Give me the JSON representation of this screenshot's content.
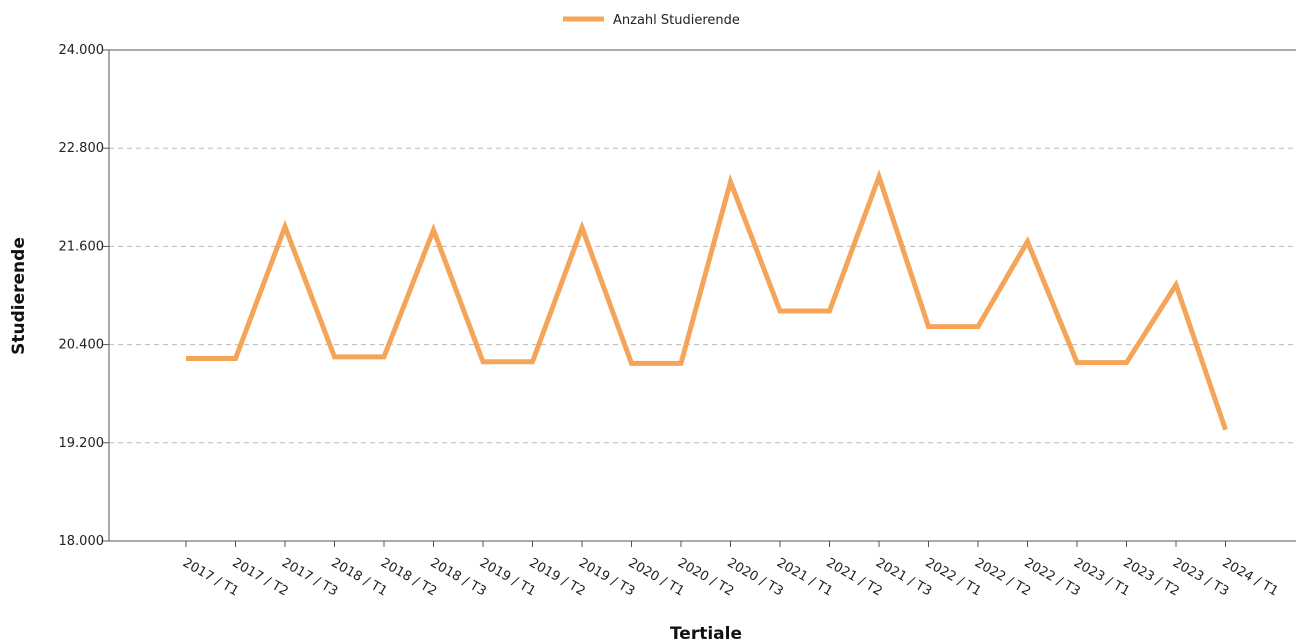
{
  "chart_data": {
    "type": "line",
    "title": "",
    "xlabel": "Tertiale",
    "ylabel": "Studierende",
    "categories": [
      "2017 / T1",
      "2017 / T2",
      "2017 / T3",
      "2018 / T1",
      "2018 / T2",
      "2018 / T3",
      "2019 / T1",
      "2019 / T2",
      "2019 / T3",
      "2020 / T1",
      "2020 / T2",
      "2020 / T3",
      "2021 / T1",
      "2021 / T2",
      "2021 / T3",
      "2022 / T1",
      "2022 / T2",
      "2022 / T3",
      "2023 / T1",
      "2023 / T2",
      "2023 / T3",
      "2024 / T1"
    ],
    "series": [
      {
        "name": "Anzahl Studierende",
        "color": "#f5a55a",
        "values": [
          20230,
          20230,
          21840,
          20250,
          20250,
          21800,
          20190,
          20190,
          21830,
          20170,
          20170,
          22390,
          20810,
          20810,
          22450,
          20620,
          20620,
          21660,
          20180,
          20180,
          21130,
          19360
        ]
      }
    ],
    "ylim": [
      18000,
      24000
    ],
    "yticks": [
      18000,
      19200,
      20400,
      21600,
      22800,
      24000
    ],
    "ytick_labels": [
      "18.000",
      "19.200",
      "20.400",
      "21.600",
      "22.800",
      "24.000"
    ],
    "grid": "horizontal-dashed",
    "legend_position": "top-center",
    "colors": {
      "axis": "#555555",
      "grid": "#bbbbbb"
    }
  }
}
